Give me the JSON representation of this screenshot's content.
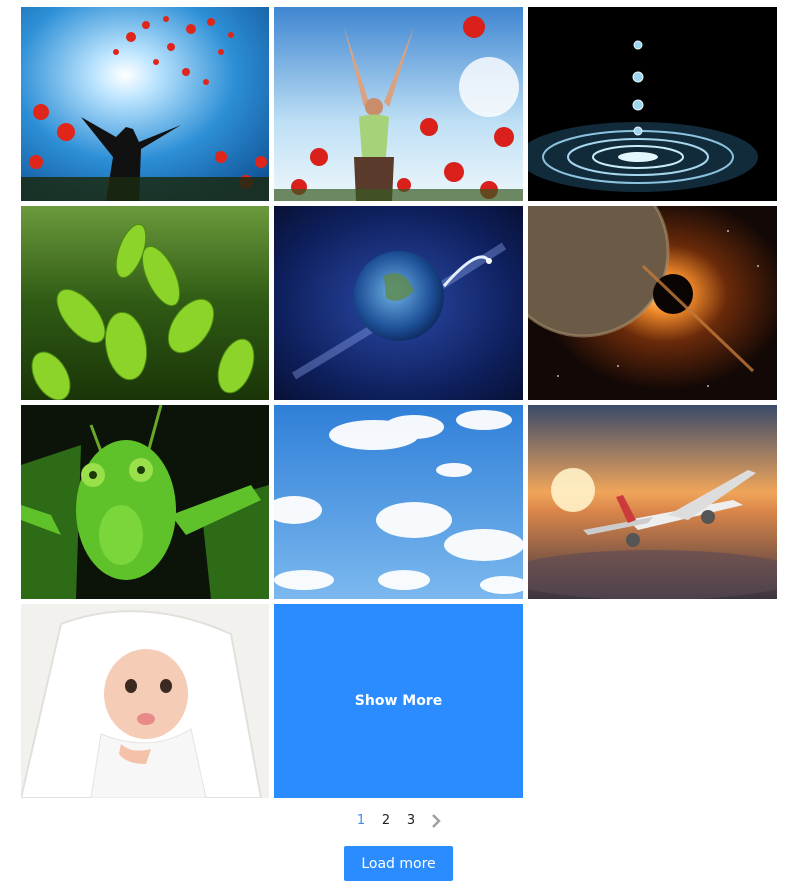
{
  "gallery": {
    "items": [
      {
        "icon": "poppies-silhouette-image"
      },
      {
        "icon": "woman-poppy-field-image"
      },
      {
        "icon": "water-drop-image"
      },
      {
        "icon": "tea-leaves-image"
      },
      {
        "icon": "earth-space-image"
      },
      {
        "icon": "planet-eclipse-image"
      },
      {
        "icon": "grasshopper-image"
      },
      {
        "icon": "blue-sky-clouds-image"
      },
      {
        "icon": "airplane-sunset-image"
      },
      {
        "icon": "baby-towel-image"
      }
    ],
    "show_more_label": "Show More"
  },
  "pagination": {
    "pages": [
      "1",
      "2",
      "3"
    ],
    "current": "1",
    "next_icon": "chevron-right-icon"
  },
  "load_more_label": "Load more",
  "colors": {
    "accent": "#2a8cff",
    "active_page": "#3e8ce6"
  }
}
